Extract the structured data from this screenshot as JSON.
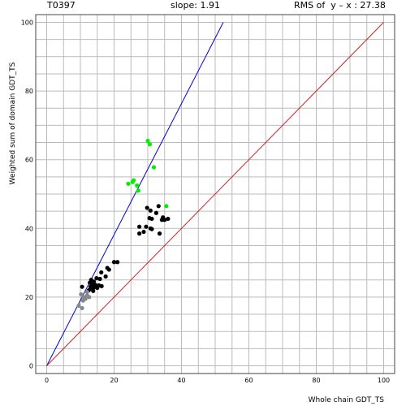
{
  "header": {
    "target_id": "T0397",
    "slope_text": "slope: 1.91",
    "rms_text": "RMS of  y – x : 27.38"
  },
  "chart_data": {
    "type": "scatter",
    "title": "",
    "xlabel": "Whole chain GDT_TS",
    "ylabel": "Weighted sum of domain GDT_TS",
    "xlim": [
      0,
      100
    ],
    "ylim": [
      0,
      100
    ],
    "xticks": [
      0,
      20,
      40,
      60,
      80,
      100
    ],
    "yticks": [
      0,
      20,
      40,
      60,
      80,
      100
    ],
    "grid": true,
    "colors": {
      "fit_line": "#0000cc",
      "diagonal": "#cc2222",
      "grid": "#bbbbbb"
    },
    "lines": [
      {
        "name": "fit",
        "points": [
          [
            0,
            0
          ],
          [
            52.4,
            100
          ]
        ],
        "color": "#0000cc"
      },
      {
        "name": "diagonal",
        "points": [
          [
            0,
            0
          ],
          [
            100,
            100
          ]
        ],
        "color": "#cc2222"
      }
    ],
    "series": [
      {
        "color": "#00ee00",
        "points": [
          [
            30.0,
            65.5
          ],
          [
            30.6,
            64.5
          ],
          [
            31.8,
            57.8
          ],
          [
            35.5,
            46.5
          ],
          [
            24.2,
            53.0
          ],
          [
            25.5,
            53.5
          ],
          [
            25.8,
            54.0
          ],
          [
            26.8,
            52.5
          ],
          [
            27.2,
            51.0
          ]
        ]
      },
      {
        "color": "#000000",
        "points": [
          [
            33.2,
            46.5
          ],
          [
            29.8,
            46.0
          ],
          [
            30.8,
            45.2
          ],
          [
            32.5,
            44.5
          ],
          [
            30.5,
            43.0
          ],
          [
            31.2,
            42.8
          ],
          [
            34.5,
            43.2
          ],
          [
            35.0,
            42.5
          ],
          [
            36.0,
            42.8
          ],
          [
            34.2,
            42.5
          ],
          [
            27.5,
            40.5
          ],
          [
            29.5,
            40.5
          ],
          [
            30.8,
            40.0
          ],
          [
            31.2,
            39.8
          ],
          [
            27.5,
            38.5
          ],
          [
            28.8,
            39.0
          ],
          [
            33.5,
            38.5
          ],
          [
            20.0,
            30.2
          ],
          [
            21.0,
            30.2
          ],
          [
            18.0,
            28.5
          ],
          [
            18.5,
            28.0
          ],
          [
            16.2,
            27.2
          ],
          [
            17.5,
            26.0
          ],
          [
            14.8,
            25.5
          ],
          [
            15.8,
            25.3
          ],
          [
            13.2,
            25.0
          ],
          [
            14.0,
            24.5
          ],
          [
            12.8,
            24.2
          ],
          [
            13.6,
            23.6
          ],
          [
            14.5,
            23.5
          ],
          [
            15.5,
            23.4
          ],
          [
            16.3,
            23.2
          ],
          [
            10.5,
            23.0
          ],
          [
            13.0,
            23.0
          ],
          [
            14.0,
            22.8
          ],
          [
            13.6,
            22.3
          ],
          [
            15.0,
            22.7
          ],
          [
            12.5,
            22.0
          ],
          [
            13.8,
            21.8
          ]
        ]
      },
      {
        "color": "#888888",
        "points": [
          [
            10.2,
            20.8
          ],
          [
            11.0,
            20.0
          ],
          [
            12.0,
            20.5
          ],
          [
            12.6,
            20.0
          ],
          [
            11.5,
            19.5
          ],
          [
            10.8,
            19.0
          ],
          [
            9.5,
            17.5
          ],
          [
            10.5,
            16.8
          ],
          [
            12.0,
            21.5
          ]
        ]
      }
    ]
  }
}
